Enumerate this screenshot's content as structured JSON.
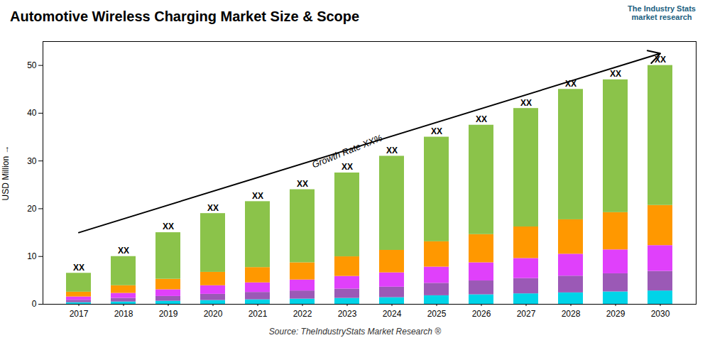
{
  "chart_data": {
    "type": "bar",
    "stacked": true,
    "title": "Automotive Wireless Charging Market Size & Scope",
    "ylabel": "USD Million",
    "source": "Source: TheIndustryStats Market Research ®",
    "logo": "The Industry Stats\nmarket research",
    "categories": [
      "2017",
      "2018",
      "2019",
      "2020",
      "2021",
      "2022",
      "2023",
      "2024",
      "2025",
      "2026",
      "2027",
      "2028",
      "2029",
      "2030"
    ],
    "series": [
      {
        "color": "#00d4e8",
        "values": [
          0.35,
          0.5,
          0.65,
          0.8,
          0.95,
          1.1,
          1.25,
          1.4,
          1.8,
          2.0,
          2.2,
          2.4,
          2.6,
          2.8
        ]
      },
      {
        "color": "#9b59b6",
        "values": [
          0.5,
          0.75,
          1.0,
          1.3,
          1.55,
          1.7,
          1.95,
          2.2,
          2.6,
          2.9,
          3.2,
          3.5,
          3.8,
          4.1
        ]
      },
      {
        "color": "#e040fb",
        "values": [
          0.7,
          1.05,
          1.4,
          1.8,
          2.0,
          2.3,
          2.65,
          3.0,
          3.4,
          3.8,
          4.2,
          4.6,
          5.0,
          5.4
        ]
      },
      {
        "color": "#ff9800",
        "values": [
          1.0,
          1.6,
          2.2,
          2.8,
          3.2,
          3.6,
          4.1,
          4.7,
          5.3,
          5.9,
          6.6,
          7.2,
          7.8,
          8.4
        ]
      },
      {
        "color": "#8bc34a",
        "values": [
          3.95,
          6.1,
          9.75,
          12.3,
          13.8,
          15.3,
          17.55,
          19.7,
          21.9,
          22.9,
          24.8,
          27.3,
          27.8,
          29.3
        ]
      }
    ],
    "bar_label": "XX",
    "arrow": {
      "x1": "2017",
      "y1": 15.0,
      "x2": "2030",
      "y2": 52.5
    },
    "annotations": [
      {
        "text": "Growth Rate XX%",
        "x": "2023",
        "y": 32.0
      }
    ],
    "ylim": [
      0,
      55
    ],
    "yticks": [
      0,
      10,
      20,
      30,
      40,
      50
    ],
    "grid": false
  }
}
